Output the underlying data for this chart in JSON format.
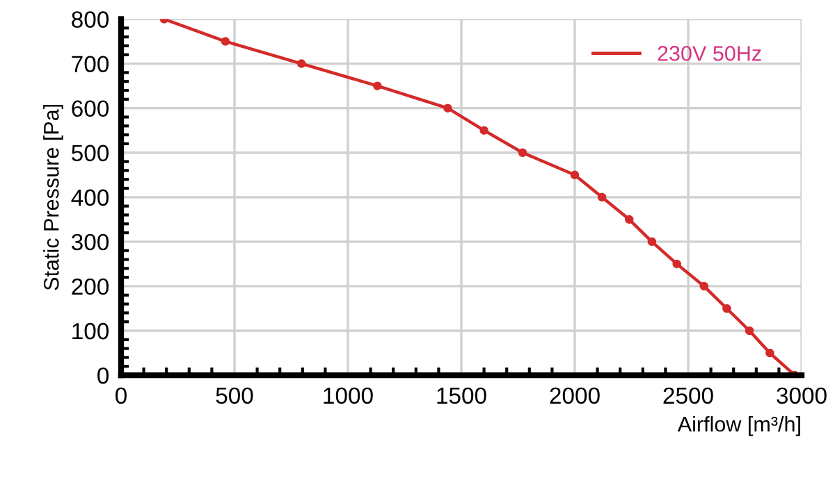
{
  "chart_data": {
    "type": "line",
    "xlabel": "Airflow [m³/h]",
    "ylabel": "Static Pressure [Pa]",
    "xlim": [
      0,
      3000
    ],
    "ylim": [
      0,
      800
    ],
    "xticks": [
      0,
      500,
      1000,
      1500,
      2000,
      2500,
      3000
    ],
    "yticks": [
      0,
      100,
      200,
      300,
      400,
      500,
      600,
      700,
      800
    ],
    "grid": true,
    "legend": "top right",
    "marker": "circle",
    "line_style": "solid",
    "series": [
      {
        "name": "230V 50Hz",
        "color": "#d42a2a",
        "x": [
          190,
          460,
          795,
          1130,
          1440,
          1600,
          1770,
          2000,
          2120,
          2240,
          2340,
          2450,
          2570,
          2670,
          2770,
          2860,
          2970
        ],
        "values": [
          800,
          750,
          700,
          650,
          600,
          550,
          500,
          450,
          400,
          350,
          300,
          250,
          200,
          150,
          100,
          50,
          0
        ]
      }
    ]
  }
}
